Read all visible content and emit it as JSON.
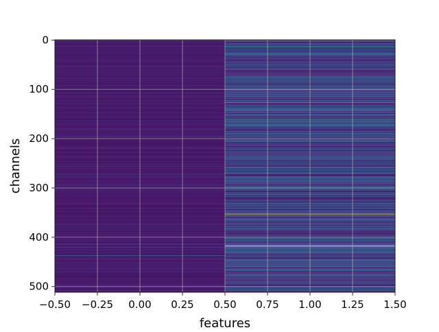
{
  "chart_data": {
    "type": "heatmap",
    "title": "",
    "xlabel": "features",
    "ylabel": "channels",
    "x_ticks": [
      -0.5,
      -0.25,
      0.0,
      0.25,
      0.5,
      0.75,
      1.0,
      1.25,
      1.5
    ],
    "x_tick_labels": [
      "−0.50",
      "−0.25",
      "0.00",
      "0.25",
      "0.50",
      "0.75",
      "1.00",
      "1.25",
      "1.50"
    ],
    "y_ticks": [
      0,
      100,
      200,
      300,
      400,
      500
    ],
    "y_tick_labels": [
      "0",
      "100",
      "200",
      "300",
      "400",
      "500"
    ],
    "xlim": [
      -0.5,
      1.5
    ],
    "ylim": [
      511.5,
      -0.5
    ],
    "y_axis_inverted": true,
    "n_rows": 512,
    "columns": [
      0,
      1
    ],
    "grid": true,
    "colormap": "viridis",
    "colors": {
      "low": "#440154",
      "mid": "#21918c",
      "high": "#fde725",
      "grid": "#b0b0b0"
    },
    "column_0_values": {
      "base": 0.05,
      "highlight_rows": [
        [
          40,
          0.14
        ],
        [
          129,
          0.16
        ],
        [
          168,
          0.11
        ],
        [
          219,
          0.14
        ],
        [
          272,
          0.15
        ],
        [
          333,
          0.12
        ],
        [
          437,
          0.3
        ],
        [
          470,
          0.12
        ],
        [
          500,
          0.11
        ]
      ]
    },
    "column_1_values": {
      "base": 0.18,
      "highlight_rows": [
        [
          2,
          0.32
        ],
        [
          14,
          0.5
        ],
        [
          28,
          0.42
        ],
        [
          75,
          0.38
        ],
        [
          110,
          0.3
        ],
        [
          127,
          0.62
        ],
        [
          143,
          0.58
        ],
        [
          152,
          0.45
        ],
        [
          162,
          0.55
        ],
        [
          166,
          0.48
        ],
        [
          205,
          0.33
        ],
        [
          262,
          0.3
        ],
        [
          313,
          0.35
        ],
        [
          353,
          0.95
        ],
        [
          363,
          0.4
        ],
        [
          382,
          0.38
        ],
        [
          416,
          1.0
        ],
        [
          419,
          0.9
        ],
        [
          430,
          0.4
        ],
        [
          447,
          0.5
        ],
        [
          460,
          0.35
        ],
        [
          475,
          0.45
        ],
        [
          495,
          0.32
        ]
      ]
    }
  }
}
